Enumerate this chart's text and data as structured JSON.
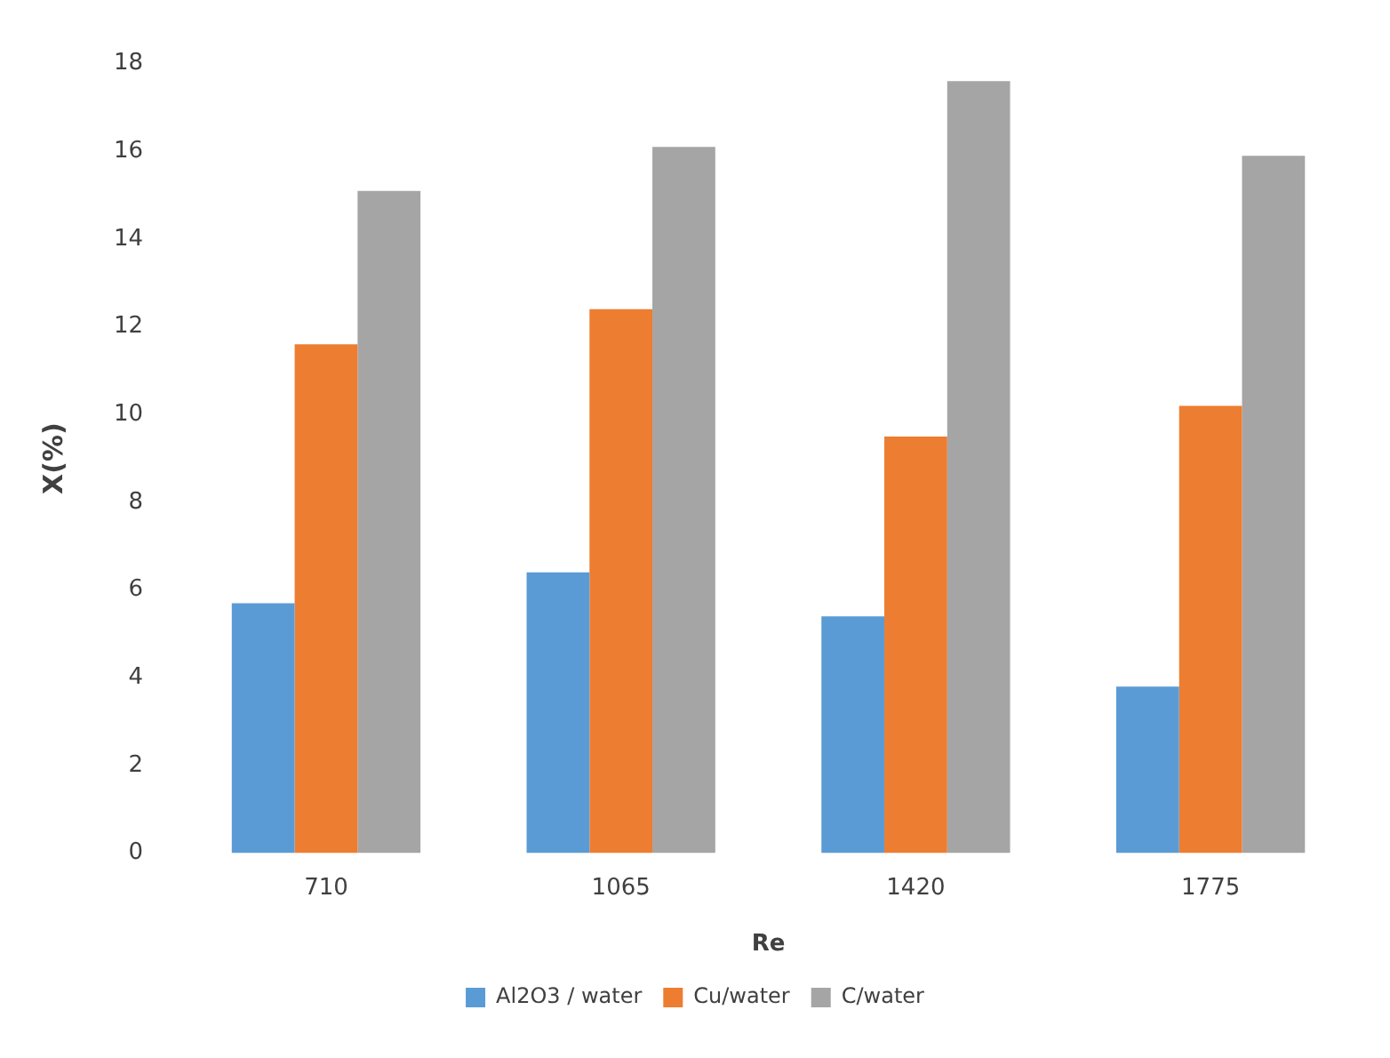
{
  "chart_data": {
    "type": "bar",
    "xlabel": "Re",
    "ylabel": "X(%)",
    "categories": [
      "710",
      "1065",
      "1420",
      "1775"
    ],
    "series": [
      {
        "name": "Al2O3 / water",
        "color": "#5b9bd5",
        "values": [
          5.7,
          6.4,
          5.4,
          3.8
        ]
      },
      {
        "name": "Cu/water",
        "color": "#ed7d31",
        "values": [
          11.6,
          12.4,
          9.5,
          10.2
        ]
      },
      {
        "name": "C/water",
        "color": "#a5a5a5",
        "values": [
          15.1,
          16.1,
          17.6,
          15.9
        ]
      }
    ],
    "ylim": [
      0,
      18
    ],
    "yticks": [
      0,
      2,
      4,
      6,
      8,
      10,
      12,
      14,
      16,
      18
    ],
    "grid": false,
    "legend": "bottom"
  }
}
